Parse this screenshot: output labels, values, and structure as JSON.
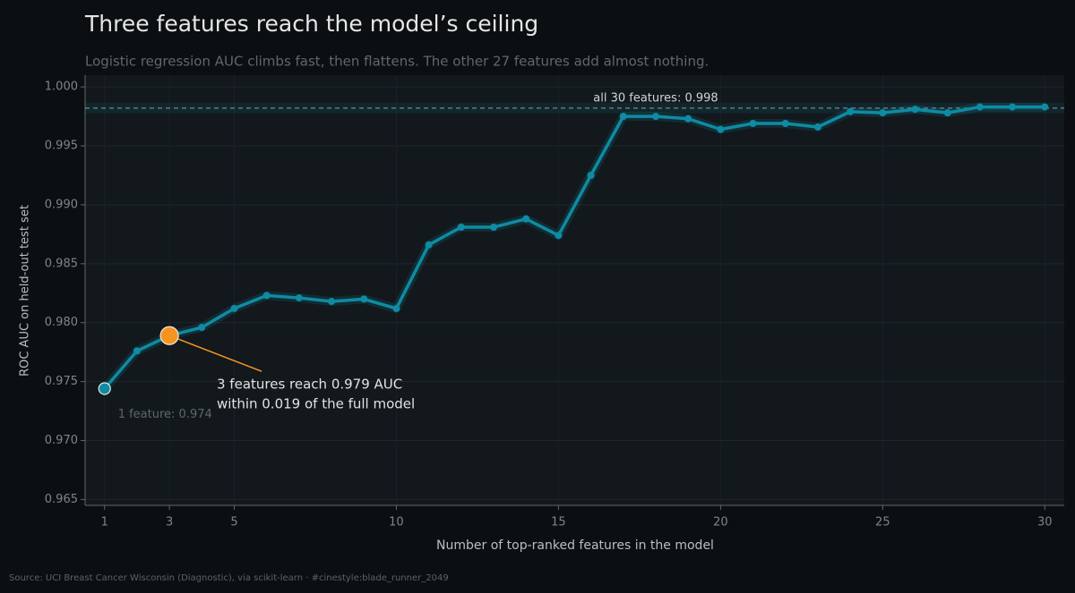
{
  "chart_data": {
    "type": "line",
    "title": "Three features reach the model’s ceiling",
    "subtitle": "Logistic regression AUC climbs fast, then flattens. The other 27 features add almost nothing.",
    "x_label": "Number of top-ranked features in the model",
    "y_label": "ROC AUC on held-out test set",
    "source": "Source: UCI Breast Cancer Wisconsin (Diagnostic), via scikit-learn  ·  #cinestyle:blade_runner_2049",
    "x": [
      1,
      2,
      3,
      4,
      5,
      6,
      7,
      8,
      9,
      10,
      11,
      12,
      13,
      14,
      15,
      16,
      17,
      18,
      19,
      20,
      21,
      22,
      23,
      24,
      25,
      26,
      27,
      28,
      29,
      30
    ],
    "series": [
      {
        "name": "ROC AUC",
        "color": "#0f8ba3",
        "values": [
          0.9744,
          0.9776,
          0.9789,
          0.9796,
          0.9812,
          0.9823,
          0.9821,
          0.9818,
          0.982,
          0.9812,
          0.9866,
          0.9881,
          0.9881,
          0.9888,
          0.9874,
          0.9925,
          0.9975,
          0.9975,
          0.9973,
          0.9964,
          0.9969,
          0.9969,
          0.9966,
          0.9979,
          0.9978,
          0.9981,
          0.9978,
          0.9983,
          0.9983,
          0.9983
        ]
      }
    ],
    "highlight_points": [
      0,
      2
    ],
    "highlight_colors": [
      "#0f8ba3",
      "#f5951f"
    ],
    "reference": {
      "value": 0.9982,
      "label": "all 30 features: 0.998"
    },
    "annotations": [
      "1 feature: 0.974",
      "3 features reach 0.979 AUC",
      "within 0.019 of the full model"
    ],
    "xlim": [
      0.4,
      30.6
    ],
    "ylim": [
      0.9645,
      1.001
    ],
    "xticks": [
      1,
      3,
      5,
      10,
      15,
      20,
      25,
      30
    ],
    "yticks": [
      {
        "value": 0.965,
        "label": "0.965"
      },
      {
        "value": 0.97,
        "label": "0.970"
      },
      {
        "value": 0.975,
        "label": "0.975"
      },
      {
        "value": 0.98,
        "label": "0.980"
      },
      {
        "value": 0.985,
        "label": "0.985"
      },
      {
        "value": 0.99,
        "label": "0.990"
      },
      {
        "value": 0.995,
        "label": "0.995"
      },
      {
        "value": 1.0,
        "label": "1.000"
      }
    ],
    "grid": true
  }
}
